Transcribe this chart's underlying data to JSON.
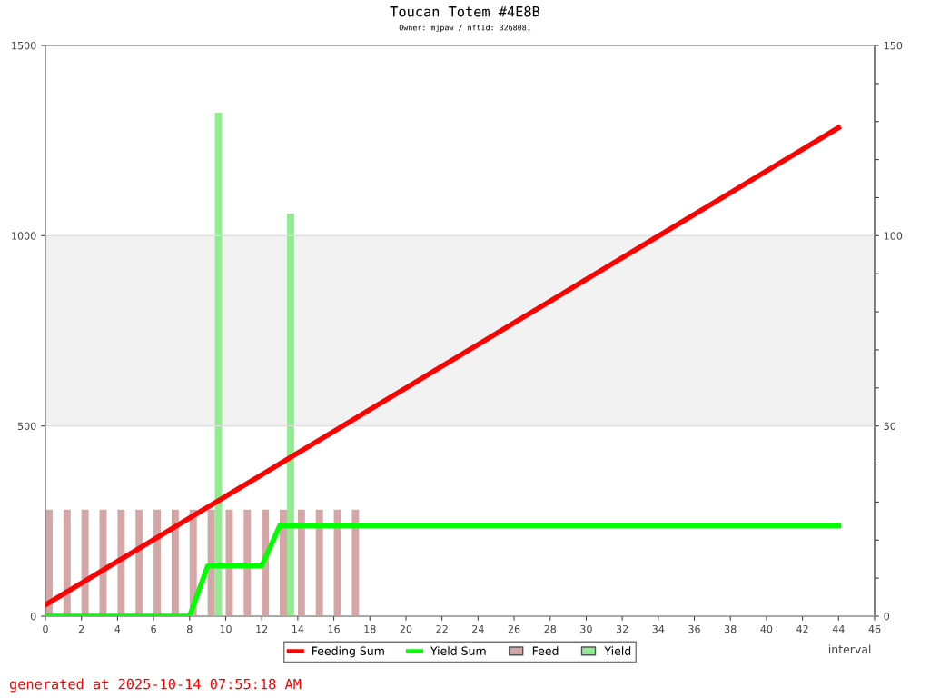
{
  "chart_data": {
    "type": "line",
    "title": "Toucan Totem #4E8B",
    "subtitle": "Owner: mjpaw / nftId: 3268081",
    "xlabel": "interval",
    "annotations": [
      "generated at 2025-10-14 07:55:18 AM"
    ],
    "xlim": [
      0,
      46
    ],
    "xticks": [
      0,
      2,
      4,
      6,
      8,
      10,
      12,
      14,
      16,
      18,
      20,
      22,
      24,
      26,
      28,
      30,
      32,
      34,
      36,
      38,
      40,
      42,
      44,
      46
    ],
    "ylim": [
      0,
      1500
    ],
    "yticks": [
      0,
      500,
      1000,
      1500
    ],
    "y2lim": [
      0,
      150
    ],
    "y2ticks": [
      0,
      {
        "value": 10,
        "label": null
      },
      {
        "value": 20,
        "label": null
      },
      {
        "value": 30,
        "label": null
      },
      {
        "value": 40,
        "label": null
      },
      50,
      {
        "value": 60,
        "label": null
      },
      {
        "value": 70,
        "label": null
      },
      {
        "value": 80,
        "label": null
      },
      {
        "value": 90,
        "label": null
      },
      100,
      {
        "value": 110,
        "label": null
      },
      {
        "value": 120,
        "label": null
      },
      {
        "value": 130,
        "label": null
      },
      {
        "value": 140,
        "label": null
      },
      150
    ],
    "grid": "y",
    "legend": "bottom",
    "bands": [
      {
        "axis": "y",
        "from": 500,
        "to": 1000,
        "label": null,
        "color": "#f2f2f2"
      }
    ],
    "series": [
      {
        "name": "Feeding Sum",
        "color": "#ff0000",
        "x": [
          0,
          2,
          4,
          6,
          8,
          10,
          12,
          14,
          16,
          18,
          20,
          22,
          24,
          26,
          28,
          30,
          32,
          34,
          36,
          38,
          40,
          42,
          44
        ],
        "values": [
          30,
          87,
          144,
          201,
          258,
          315,
          372,
          429,
          486,
          543,
          600,
          657,
          714,
          771,
          828,
          885,
          942,
          999,
          1056,
          1113,
          1170,
          1227,
          1284
        ]
      },
      {
        "name": "Yield Sum",
        "color": "#00ff00",
        "x": [
          0,
          8,
          9,
          12,
          13,
          44
        ],
        "values": [
          0,
          0,
          132,
          132,
          238,
          238
        ]
      },
      {
        "name": "Feed",
        "type": "bar",
        "axis": "y2",
        "color": "#d4a6a6",
        "x": [
          0.2,
          1.2,
          2.2,
          3.2,
          4.2,
          5.2,
          6.2,
          7.2,
          8.2,
          9.2,
          10.2,
          11.2,
          12.2,
          13.2,
          14.2,
          15.2,
          16.2,
          17.2
        ],
        "values": [
          28,
          28,
          28,
          28,
          28,
          28,
          28,
          28,
          28,
          28,
          28,
          28,
          28,
          28,
          28,
          28,
          28,
          28
        ]
      },
      {
        "name": "Yield",
        "type": "bar",
        "axis": "y2",
        "color": "#90ee90",
        "x": [
          9.6,
          13.6
        ],
        "values": [
          132.3,
          105.8
        ]
      }
    ]
  }
}
